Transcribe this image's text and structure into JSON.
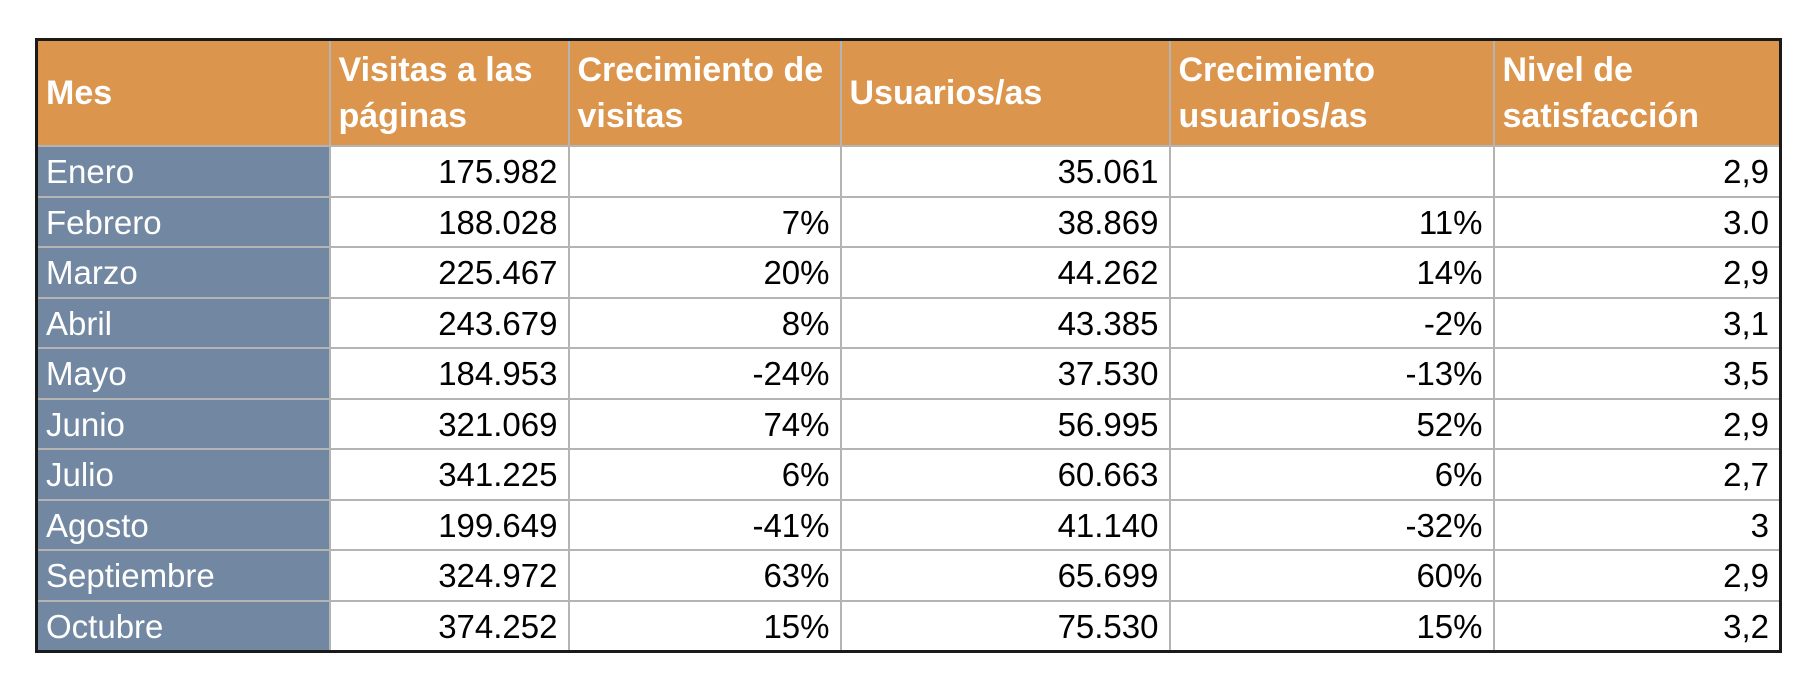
{
  "table": {
    "headers": [
      "Mes",
      "Visitas a las páginas",
      "Crecimiento de visitas",
      "Usuarios/as",
      "Crecimiento usuarios/as",
      "Nivel de satisfacción"
    ],
    "rows": [
      [
        "Enero",
        "175.982",
        "",
        "35.061",
        "",
        "2,9"
      ],
      [
        "Febrero",
        "188.028",
        "7%",
        "38.869",
        "11%",
        "3.0"
      ],
      [
        "Marzo",
        "225.467",
        "20%",
        "44.262",
        "14%",
        "2,9"
      ],
      [
        "Abril",
        "243.679",
        "8%",
        "43.385",
        "-2%",
        "3,1"
      ],
      [
        "Mayo",
        "184.953",
        "-24%",
        "37.530",
        "-13%",
        "3,5"
      ],
      [
        "Junio",
        "321.069",
        "74%",
        "56.995",
        "52%",
        "2,9"
      ],
      [
        "Julio",
        "341.225",
        "6%",
        "60.663",
        "6%",
        "2,7"
      ],
      [
        "Agosto",
        "199.649",
        "-41%",
        "41.140",
        "-32%",
        "3"
      ],
      [
        "Septiembre",
        "324.972",
        "63%",
        "65.699",
        "60%",
        "2,9"
      ],
      [
        "Octubre",
        "374.252",
        "15%",
        "75.530",
        "15%",
        "3,2"
      ]
    ]
  },
  "colors": {
    "header_bg": "#db954d",
    "month_bg": "#7288a2",
    "grid": "#b4b4b4"
  }
}
